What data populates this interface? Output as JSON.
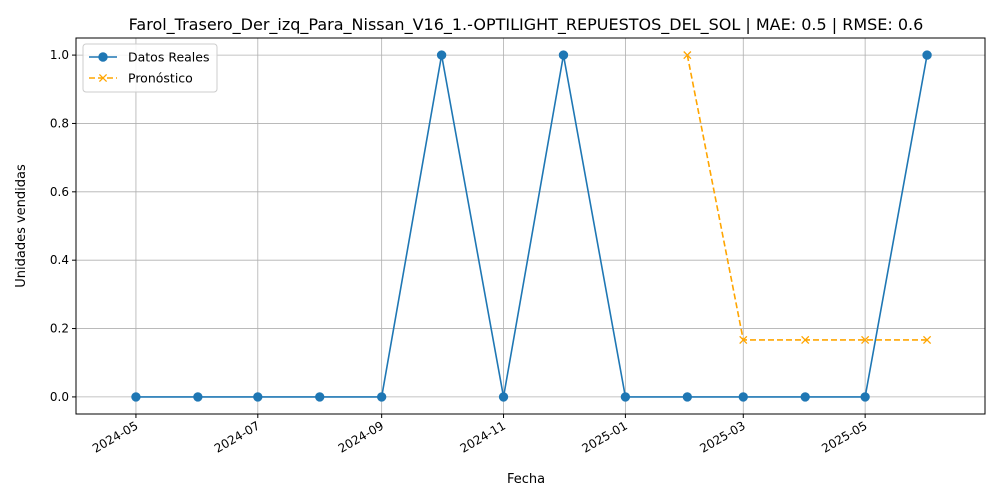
{
  "chart_data": {
    "type": "line",
    "title": "Farol_Trasero_Der_izq_Para_Nissan_V16_1.-OPTILIGHT_REPUESTOS_DEL_SOL | MAE: 0.5 | RMSE: 0.6",
    "xlabel": "Fecha",
    "ylabel": "Unidades vendidas",
    "x_ticks": [
      "2024-05",
      "2024-07",
      "2024-09",
      "2024-11",
      "2025-01",
      "2025-03",
      "2025-05"
    ],
    "y_ticks": [
      "0.0",
      "0.2",
      "0.4",
      "0.6",
      "0.8",
      "1.0"
    ],
    "xlim": [
      "2024-04-01",
      "2025-06-30"
    ],
    "ylim": [
      -0.05,
      1.05
    ],
    "grid": true,
    "legend_position": "top-left",
    "series": [
      {
        "name": "Datos Reales",
        "color": "#1f77b4",
        "style": "solid",
        "marker": "circle",
        "x": [
          "2024-05-01",
          "2024-06-01",
          "2024-07-01",
          "2024-08-01",
          "2024-09-01",
          "2024-10-01",
          "2024-11-01",
          "2024-12-01",
          "2025-01-01",
          "2025-02-01",
          "2025-03-01",
          "2025-04-01",
          "2025-05-01",
          "2025-06-01"
        ],
        "values": [
          0,
          0,
          0,
          0,
          0,
          1,
          0,
          1,
          0,
          0,
          0,
          0,
          0,
          1
        ]
      },
      {
        "name": "Pronóstico",
        "color": "#ffa500",
        "style": "dashed",
        "marker": "x",
        "x": [
          "2025-02-01",
          "2025-03-01",
          "2025-04-01",
          "2025-05-01",
          "2025-06-01"
        ],
        "values": [
          1.0,
          0.1667,
          0.1667,
          0.1667,
          0.1667
        ]
      }
    ]
  }
}
